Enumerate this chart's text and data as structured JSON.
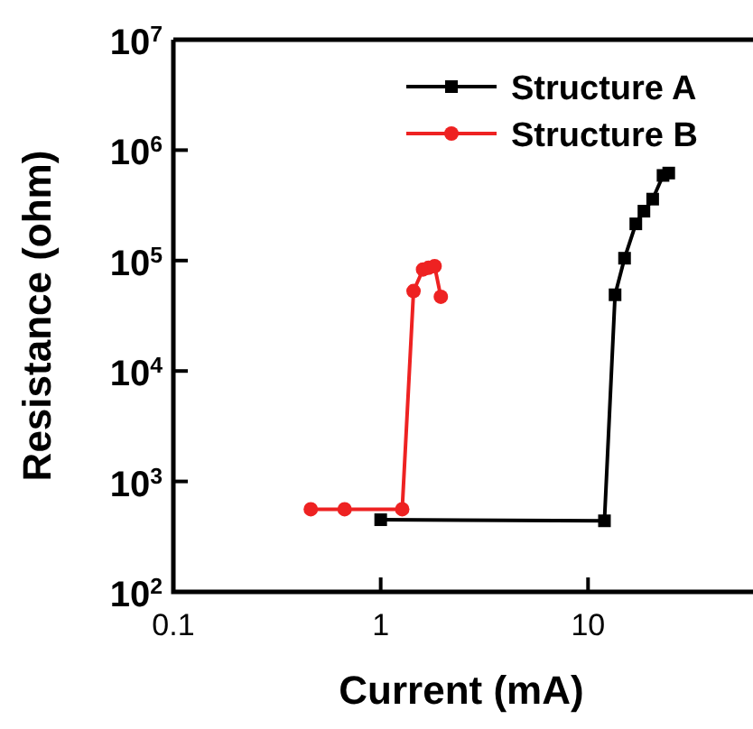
{
  "chart_data": {
    "type": "line",
    "xlabel": "Current (mA)",
    "ylabel": "Resistance (ohm)",
    "log": "xy",
    "xlim": [
      0.1,
      60
    ],
    "xticks": [
      0.1,
      1,
      10
    ],
    "ylim": [
      100,
      10000000
    ],
    "yticks": [
      {
        "value": 100,
        "label": "10$^{2}$"
      },
      {
        "value": 1000,
        "label": "10$^{3}$"
      },
      {
        "value": 10000,
        "label": "10$^{4}$"
      },
      {
        "value": 100000,
        "label": "10$^{5}$"
      },
      {
        "value": 1000000,
        "label": "10$^{6}$"
      },
      {
        "value": 10000000,
        "label": "10$^{7}$"
      }
    ],
    "grid": false,
    "legend": "top right",
    "line_style": "solid",
    "series": [
      {
        "name": "Structure A",
        "color": "#000000",
        "marker": "square",
        "x": [
          1.0,
          12,
          13.5,
          15,
          17,
          18.6,
          20.5,
          23,
          24.5
        ],
        "values": [
          450,
          440,
          49000,
          105000,
          215000,
          280000,
          360000,
          590000,
          620000
        ]
      },
      {
        "name": "Structure B",
        "color": "#ee2222",
        "marker": "circle",
        "x": [
          0.46,
          0.67,
          1.27,
          1.44,
          1.6,
          1.7,
          1.82,
          1.95
        ],
        "values": [
          560,
          560,
          560,
          53000,
          83000,
          86000,
          89000,
          47000
        ]
      }
    ]
  }
}
